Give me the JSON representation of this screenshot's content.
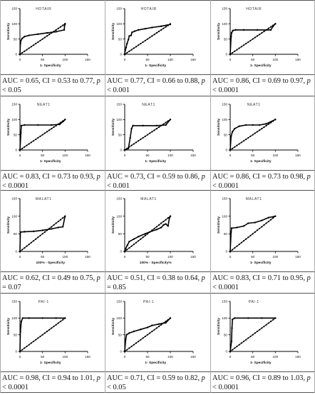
{
  "chart_data": [
    {
      "type": "line",
      "panel": "hotair-1",
      "title": "HOTAIR",
      "xlabel": "1- Specificity",
      "ylabel": "Sensitivity",
      "xticks": [
        "0",
        "50",
        "100",
        "150"
      ],
      "yticks": [
        "0",
        "50",
        "100",
        "150"
      ],
      "xlim": [
        0,
        150
      ],
      "ylim": [
        0,
        150
      ],
      "series": [
        {
          "values": [
            [
              0,
              0
            ],
            [
              1,
              35
            ],
            [
              2,
              45
            ],
            [
              5,
              52
            ],
            [
              10,
              58
            ],
            [
              20,
              62
            ],
            [
              40,
              66
            ],
            [
              60,
              70
            ],
            [
              80,
              74
            ],
            [
              98,
              80
            ],
            [
              99,
              95
            ],
            [
              100,
              100
            ],
            [
              100,
              100
            ]
          ]
        }
      ],
      "reference": [
        [
          0,
          0
        ],
        [
          100,
          100
        ]
      ],
      "caption": {
        "auc": "AUC = 0.65, CI = 0.53 to 0.77, ",
        "p": "p",
        "rest": " < 0.05"
      }
    },
    {
      "type": "line",
      "panel": "hotair-2",
      "title": "HOTAIR",
      "xlabel": "1- Specificity",
      "ylabel": "Sensitivity",
      "xticks": [
        "0",
        "50",
        "100",
        "150"
      ],
      "yticks": [
        "0",
        "50",
        "100",
        "150"
      ],
      "xlim": [
        0,
        150
      ],
      "ylim": [
        0,
        150
      ],
      "series": [
        {
          "values": [
            [
              0,
              0
            ],
            [
              1,
              12
            ],
            [
              3,
              22
            ],
            [
              5,
              35
            ],
            [
              8,
              48
            ],
            [
              10,
              60
            ],
            [
              14,
              62
            ],
            [
              16,
              72
            ],
            [
              22,
              76
            ],
            [
              30,
              80
            ],
            [
              45,
              84
            ],
            [
              60,
              88
            ],
            [
              80,
              92
            ],
            [
              100,
              98
            ]
          ]
        }
      ],
      "reference": [
        [
          0,
          0
        ],
        [
          100,
          100
        ]
      ],
      "caption": {
        "auc": "AUC = 0.77, CI = 0.66 to 0.88, ",
        "p": "p",
        "rest": " < 0.001"
      }
    },
    {
      "type": "line",
      "panel": "hotair-3",
      "title": "HOTAIR",
      "xlabel": "1- Specificity",
      "ylabel": "Sensitivity",
      "xticks": [
        "0",
        "50",
        "100",
        "150"
      ],
      "yticks": [
        "0",
        "50",
        "100",
        "150"
      ],
      "xlim": [
        0,
        150
      ],
      "ylim": [
        0,
        150
      ],
      "series": [
        {
          "values": [
            [
              0,
              0
            ],
            [
              2,
              58
            ],
            [
              3,
              70
            ],
            [
              6,
              78
            ],
            [
              12,
              80
            ],
            [
              30,
              80
            ],
            [
              60,
              80
            ],
            [
              90,
              80
            ],
            [
              95,
              92
            ],
            [
              100,
              100
            ]
          ]
        }
      ],
      "reference": [
        [
          0,
          0
        ],
        [
          100,
          100
        ]
      ],
      "caption": {
        "auc": "AUC = 0.86, CI = 0.69 to 0.97, ",
        "p": "p",
        "rest": " < 0.0001"
      }
    },
    {
      "type": "line",
      "panel": "neat1-1",
      "title": "NEAT1",
      "xlabel": "1- Specificity",
      "ylabel": "Sensitivity",
      "xticks": [
        "0",
        "50",
        "100",
        "150"
      ],
      "yticks": [
        "0",
        "50",
        "100",
        "150"
      ],
      "xlim": [
        0,
        150
      ],
      "ylim": [
        0,
        150
      ],
      "series": [
        {
          "values": [
            [
              0,
              0
            ],
            [
              2,
              55
            ],
            [
              3,
              80
            ],
            [
              10,
              82
            ],
            [
              40,
              82
            ],
            [
              70,
              82
            ],
            [
              88,
              84
            ],
            [
              96,
              94
            ],
            [
              100,
              100
            ]
          ]
        }
      ],
      "reference": [
        [
          0,
          0
        ],
        [
          100,
          100
        ]
      ],
      "caption": {
        "auc": "AUC = 0.83, CI = 0.73 to 0.93, ",
        "p": "p",
        "rest": " < 0.0001"
      }
    },
    {
      "type": "line",
      "panel": "neat1-2",
      "title": "NEAT1",
      "xlabel": "1- Specificity",
      "ylabel": "Sensitivity",
      "xticks": [
        "0",
        "50",
        "100",
        "150"
      ],
      "yticks": [
        "0",
        "50",
        "100",
        "150"
      ],
      "xlim": [
        0,
        150
      ],
      "ylim": [
        0,
        150
      ],
      "series": [
        {
          "values": [
            [
              0,
              0
            ],
            [
              8,
              5
            ],
            [
              12,
              40
            ],
            [
              15,
              70
            ],
            [
              18,
              80
            ],
            [
              40,
              80
            ],
            [
              70,
              80
            ],
            [
              90,
              82
            ],
            [
              100,
              100
            ]
          ]
        }
      ],
      "reference": [
        [
          0,
          0
        ],
        [
          100,
          100
        ]
      ],
      "caption": {
        "auc": "AUC = 0.73, CI = 0.59 to 0.86, ",
        "p": "p",
        "rest": " < 0.001"
      }
    },
    {
      "type": "line",
      "panel": "neat1-3",
      "title": "NEAT1",
      "xlabel": "1- Specificity",
      "ylabel": "Sensitivity",
      "xticks": [
        "0",
        "50",
        "100",
        "150"
      ],
      "yticks": [
        "0",
        "50",
        "100",
        "150"
      ],
      "xlim": [
        0,
        150
      ],
      "ylim": [
        0,
        150
      ],
      "series": [
        {
          "values": [
            [
              0,
              0
            ],
            [
              2,
              45
            ],
            [
              5,
              60
            ],
            [
              10,
              70
            ],
            [
              20,
              78
            ],
            [
              35,
              82
            ],
            [
              50,
              82
            ],
            [
              65,
              82
            ],
            [
              80,
              86
            ],
            [
              100,
              100
            ]
          ]
        }
      ],
      "reference": [
        [
          0,
          0
        ],
        [
          100,
          100
        ]
      ],
      "caption": {
        "auc": "AUC = 0.86, CI = 0.73 to 0.98, ",
        "p": "p",
        "rest": " < 0.0001"
      }
    },
    {
      "type": "line",
      "panel": "malat1-1",
      "title": "MALAT1",
      "xlabel": "100% - Specificity",
      "ylabel": "Sensitivity",
      "xticks": [
        "0",
        "50",
        "100",
        "150"
      ],
      "yticks": [
        "0",
        "50",
        "100",
        "150"
      ],
      "xlim": [
        0,
        150
      ],
      "ylim": [
        0,
        150
      ],
      "series": [
        {
          "values": [
            [
              0,
              0
            ],
            [
              1,
              55
            ],
            [
              10,
              56
            ],
            [
              30,
              57
            ],
            [
              50,
              60
            ],
            [
              70,
              64
            ],
            [
              85,
              68
            ],
            [
              95,
              70
            ],
            [
              100,
              100
            ]
          ]
        }
      ],
      "reference": [
        [
          0,
          0
        ],
        [
          100,
          100
        ]
      ],
      "caption": {
        "auc": "AUC = 0.62, CI = 0.49 to 0.75, ",
        "p": "p",
        "rest": " = 0.07"
      }
    },
    {
      "type": "line",
      "panel": "malat1-2",
      "title": "MALAT1",
      "xlabel": "100% - Specificity%",
      "ylabel": "Sensitivity",
      "xticks": [
        "0",
        "50",
        "100",
        "150"
      ],
      "yticks": [
        "0",
        "50",
        "100",
        "150"
      ],
      "xlim": [
        0,
        150
      ],
      "ylim": [
        0,
        150
      ],
      "series": [
        {
          "values": [
            [
              0,
              0
            ],
            [
              2,
              8
            ],
            [
              6,
              18
            ],
            [
              10,
              28
            ],
            [
              20,
              35
            ],
            [
              30,
              42
            ],
            [
              45,
              50
            ],
            [
              60,
              58
            ],
            [
              70,
              62
            ],
            [
              80,
              68
            ],
            [
              85,
              75
            ],
            [
              90,
              78
            ],
            [
              95,
              72
            ],
            [
              98,
              95
            ],
            [
              100,
              100
            ]
          ]
        }
      ],
      "reference": [
        [
          0,
          0
        ],
        [
          100,
          100
        ]
      ],
      "caption": {
        "auc": "AUC = 0.51, CI = 0.38 to 0.64, ",
        "p": "p",
        "rest": " = 0.85"
      }
    },
    {
      "type": "line",
      "panel": "malat1-3",
      "title": "MALAT1",
      "xlabel": "1- Specificity",
      "ylabel": "Sensitivity",
      "xticks": [
        "0",
        "50",
        "100",
        "150"
      ],
      "yticks": [
        "0",
        "50",
        "100",
        "150"
      ],
      "xlim": [
        0,
        150
      ],
      "ylim": [
        0,
        150
      ],
      "series": [
        {
          "values": [
            [
              0,
              0
            ],
            [
              2,
              55
            ],
            [
              3,
              66
            ],
            [
              15,
              68
            ],
            [
              30,
              72
            ],
            [
              40,
              80
            ],
            [
              55,
              82
            ],
            [
              70,
              88
            ],
            [
              85,
              96
            ],
            [
              100,
              100
            ]
          ]
        }
      ],
      "reference": [
        [
          0,
          0
        ],
        [
          100,
          100
        ]
      ],
      "caption": {
        "auc": "AUC = 0.83, CI = 0.71 to 0.95, ",
        "p": "p",
        "rest": " < 0.0001"
      }
    },
    {
      "type": "line",
      "panel": "pai1-1",
      "title": "PAI-1",
      "xlabel": "1- Specificity",
      "ylabel": "Sensitivity",
      "xticks": [
        "0",
        "50",
        "100",
        "150"
      ],
      "yticks": [
        "0",
        "50",
        "100",
        "150"
      ],
      "xlim": [
        0,
        150
      ],
      "ylim": [
        0,
        150
      ],
      "series": [
        {
          "values": [
            [
              0,
              0
            ],
            [
              1,
              60
            ],
            [
              3,
              90
            ],
            [
              6,
              100
            ],
            [
              20,
              100
            ],
            [
              50,
              100
            ],
            [
              80,
              100
            ],
            [
              100,
              100
            ]
          ]
        }
      ],
      "reference": [
        [
          0,
          0
        ],
        [
          100,
          100
        ]
      ],
      "caption": {
        "auc": "AUC = 0.98, CI = 0.94 to 1.01, ",
        "p": "p",
        "rest": " < 0.0001"
      }
    },
    {
      "type": "line",
      "panel": "pai1-2",
      "title": "PAI-1",
      "xlabel": "1- Specificity",
      "ylabel": "Sensitivity",
      "xticks": [
        "0",
        "50",
        "100",
        "150"
      ],
      "yticks": [
        "0",
        "50",
        "100",
        "150"
      ],
      "xlim": [
        0,
        150
      ],
      "ylim": [
        0,
        150
      ],
      "series": [
        {
          "values": [
            [
              0,
              0
            ],
            [
              2,
              35
            ],
            [
              4,
              50
            ],
            [
              10,
              55
            ],
            [
              20,
              60
            ],
            [
              35,
              66
            ],
            [
              50,
              72
            ],
            [
              60,
              78
            ],
            [
              75,
              82
            ],
            [
              90,
              86
            ],
            [
              100,
              100
            ]
          ]
        }
      ],
      "reference": [
        [
          0,
          0
        ],
        [
          100,
          100
        ]
      ],
      "caption": {
        "auc": "AUC = 0.71, CI = 0.59 to 0.82, ",
        "p": "p",
        "rest": " < 0.05"
      }
    },
    {
      "type": "line",
      "panel": "pai1-3",
      "title": "PAI-1",
      "xlabel": "1- Specificity",
      "ylabel": "Sensitivity",
      "xticks": [
        "0",
        "50",
        "100",
        "150"
      ],
      "yticks": [
        "0",
        "50",
        "100",
        "150"
      ],
      "xlim": [
        0,
        150
      ],
      "ylim": [
        0,
        150
      ],
      "series": [
        {
          "values": [
            [
              0,
              0
            ],
            [
              3,
              30
            ],
            [
              4,
              70
            ],
            [
              5,
              96
            ],
            [
              10,
              100
            ],
            [
              40,
              100
            ],
            [
              70,
              100
            ],
            [
              100,
              100
            ]
          ]
        }
      ],
      "reference": [
        [
          0,
          0
        ],
        [
          100,
          100
        ]
      ],
      "caption": {
        "auc": "AUC = 0.96, CI = 0.89 to 1.03, ",
        "p": "p",
        "rest": " < 0.0001"
      }
    }
  ]
}
